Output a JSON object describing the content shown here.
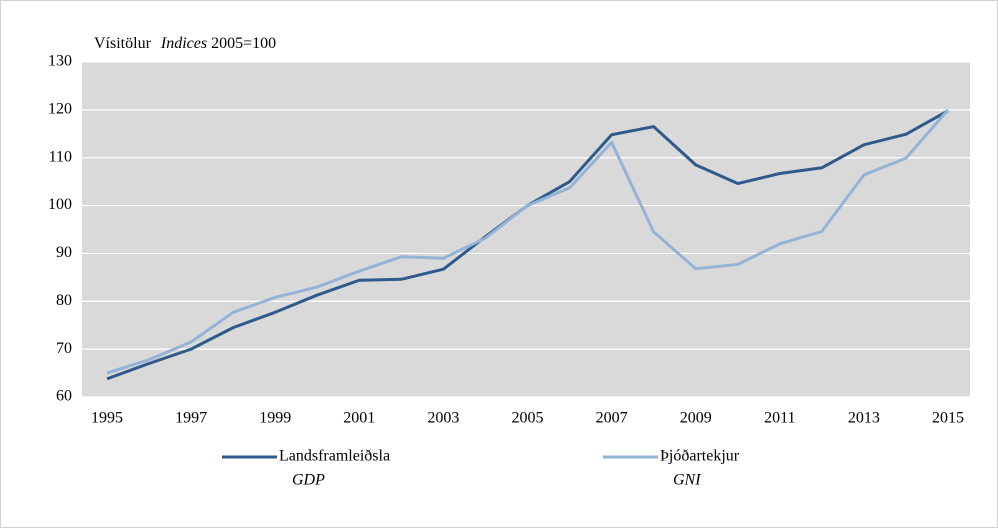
{
  "chart_data": {
    "type": "line",
    "title_parts": [
      "Vísitölur",
      "Indices",
      "2005=100"
    ],
    "x": [
      1995,
      1996,
      1997,
      1998,
      1999,
      2000,
      2001,
      2002,
      2003,
      2004,
      2005,
      2006,
      2007,
      2008,
      2009,
      2010,
      2011,
      2012,
      2013,
      2014,
      2015
    ],
    "series": [
      {
        "name": "Landsframleiðsla",
        "name_en": "GDP",
        "color": "#2f5a8c",
        "values": [
          63.8,
          67,
          70,
          74.5,
          77.7,
          81.3,
          84.4,
          84.6,
          86.7,
          93.5,
          100,
          105,
          114.8,
          116.5,
          108.5,
          104.6,
          106.7,
          107.9,
          112.7,
          114.9,
          119.8
        ]
      },
      {
        "name": "Þjóðartekjur",
        "name_en": "GNI",
        "color": "#95b3d7",
        "values": [
          65,
          67.8,
          71.5,
          77.7,
          80.8,
          83,
          86.3,
          89.3,
          89,
          93.2,
          100,
          103.7,
          113.2,
          94.5,
          86.8,
          87.7,
          92,
          94.6,
          106.4,
          109.9,
          120
        ]
      }
    ],
    "xlim": [
      1995,
      2015
    ],
    "xticks": [
      1995,
      1997,
      1999,
      2001,
      2003,
      2005,
      2007,
      2009,
      2011,
      2013,
      2015
    ],
    "ylim": [
      60,
      130
    ],
    "yticks": [
      60,
      70,
      80,
      90,
      100,
      110,
      120,
      130
    ],
    "grid": true,
    "plot_background": "#d9d9d9"
  }
}
